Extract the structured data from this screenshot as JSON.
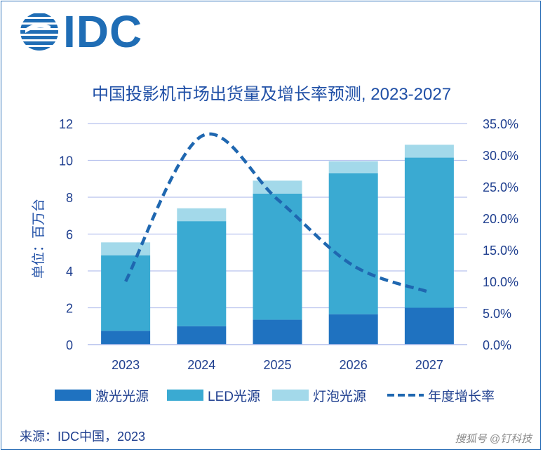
{
  "header": {
    "logo_text": "IDC"
  },
  "chart_data": {
    "type": "bar",
    "title": "中国投影机市场出货量及增长率预测, 2023-2027",
    "ylabel": "单位：百万台",
    "categories": [
      "2023",
      "2024",
      "2025",
      "2026",
      "2027"
    ],
    "ylim": [
      0,
      12
    ],
    "y_ticks": [
      "0",
      "2",
      "4",
      "6",
      "8",
      "10",
      "12"
    ],
    "y2lim": [
      0,
      35
    ],
    "y2_ticks": [
      "0.0%",
      "5.0%",
      "10.0%",
      "15.0%",
      "20.0%",
      "25.0%",
      "30.0%",
      "35.0%"
    ],
    "grid": true,
    "legend_position": "bottom",
    "series": [
      {
        "name": "激光光源",
        "type": "bar",
        "stacked": true,
        "color": "#1f72c0",
        "values": [
          0.75,
          1.0,
          1.35,
          1.65,
          2.0
        ]
      },
      {
        "name": "LED光源",
        "type": "bar",
        "stacked": true,
        "color": "#3aaad2",
        "values": [
          4.1,
          5.7,
          6.85,
          7.65,
          8.15
        ]
      },
      {
        "name": "灯泡光源",
        "type": "bar",
        "stacked": true,
        "color": "#a3d9ea",
        "values": [
          0.7,
          0.7,
          0.7,
          0.65,
          0.7
        ]
      },
      {
        "name": "年度增长率",
        "type": "line",
        "axis": "right",
        "style": "dashed",
        "color": "#1f67b0",
        "values": [
          10.0,
          33.0,
          23.0,
          12.5,
          8.3
        ]
      }
    ]
  },
  "footer": {
    "source": "来源：IDC中国，2023",
    "watermark": "搜狐号 @钉科技"
  }
}
